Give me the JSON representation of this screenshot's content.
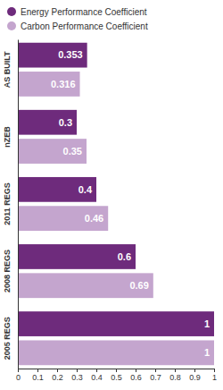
{
  "chart_data": {
    "type": "bar",
    "orientation": "horizontal",
    "categories": [
      "AS BUILT",
      "nZEB",
      "2011 REGS",
      "2008 REGS",
      "2005 REGS"
    ],
    "series": [
      {
        "name": "Energy Performance Coefficient",
        "color": "#6e2b7c",
        "values": [
          0.353,
          0.3,
          0.4,
          0.6,
          1
        ]
      },
      {
        "name": "Carbon Performance Coefficient",
        "color": "#c4a5ce",
        "values": [
          0.316,
          0.35,
          0.46,
          0.69,
          1
        ]
      }
    ],
    "xlim": [
      0,
      1
    ],
    "xticks": [
      0,
      0.1,
      0.2,
      0.3,
      0.4,
      0.5,
      0.6,
      0.7,
      0.8,
      0.9,
      1
    ],
    "grid": false,
    "legend": "top-left",
    "data_labels": true
  }
}
